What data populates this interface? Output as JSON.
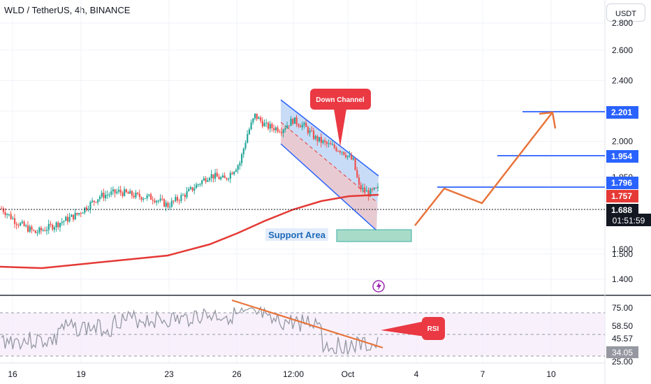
{
  "header": {
    "title": "WLD / TetherUS, 4h, BINANCE",
    "currency_label": "USDT"
  },
  "colors": {
    "up": "#26a69a",
    "down": "#ef5350",
    "ma": "#e53935",
    "accent": "#2962ff",
    "annotation": "#e8743b",
    "rsi_line": "#9598a1"
  },
  "chart_data": [
    {
      "type": "candlestick",
      "y_ticks": [
        "2.800",
        "2.600",
        "2.400",
        "2.200",
        "2.000",
        "1.850",
        "1.600",
        "1.500",
        "1.400"
      ],
      "x_ticks": [
        "16",
        "19",
        "23",
        "26",
        "12:00",
        "Oct",
        "4",
        "7",
        "10"
      ],
      "price_tags": [
        {
          "value": "2.201",
          "color": "#2962ff"
        },
        {
          "value": "1.954",
          "color": "#2962ff"
        },
        {
          "value": "1.796",
          "color": "#2962ff"
        },
        {
          "value": "1.757",
          "color": "#e53935"
        },
        {
          "value": "1.688",
          "color": "#131722"
        }
      ],
      "countdown": "01:51:59",
      "annotations": [
        "Down Channel",
        "Support Area"
      ],
      "projection_path": [
        1.59,
        1.77,
        1.7,
        2.2
      ]
    },
    {
      "type": "line",
      "indicator": "RSI",
      "y_ticks": [
        "75.00",
        "58.50",
        "45.57",
        "25.00"
      ],
      "current_value": "34.05",
      "annotation": "RSI"
    }
  ]
}
